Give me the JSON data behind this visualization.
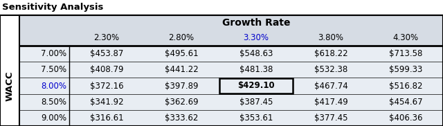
{
  "title": "Sensitivity Analysis",
  "col_header_label": "Growth Rate",
  "col_headers": [
    "2.30%",
    "2.80%",
    "3.30%",
    "3.80%",
    "4.30%"
  ],
  "row_header_label": "WACC",
  "row_headers": [
    "7.00%",
    "7.50%",
    "8.00%",
    "8.50%",
    "9.00%"
  ],
  "values": [
    [
      "$453.87",
      "$495.61",
      "$548.63",
      "$618.22",
      "$713.58"
    ],
    [
      "$408.79",
      "$441.22",
      "$481.38",
      "$532.38",
      "$599.33"
    ],
    [
      "$372.16",
      "$397.89",
      "$429.10",
      "$467.74",
      "$516.82"
    ],
    [
      "$341.92",
      "$362.69",
      "$387.45",
      "$417.49",
      "$454.67"
    ],
    [
      "$316.61",
      "$333.62",
      "$353.61",
      "$377.45",
      "$406.36"
    ]
  ],
  "highlight_row": 2,
  "highlight_col": 2,
  "highlight_row_label_color": "#0000CC",
  "highlight_col_header_color": "#0000CC",
  "header_bg": "#D6DCE4",
  "data_bg": "#E8EDF3",
  "border_color": "#000000",
  "text_color": "#000000",
  "fig_bg": "#FFFFFF",
  "fontsize": 8.5,
  "title_fontsize": 9.5
}
